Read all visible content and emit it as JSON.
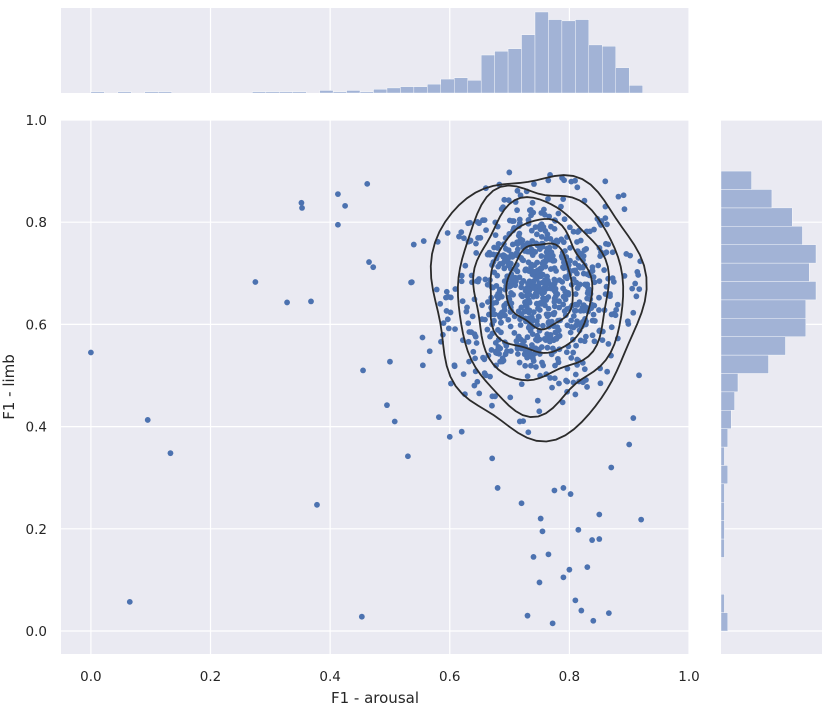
{
  "chart_data": {
    "type": "scatter",
    "title": "",
    "xlabel": "F1 - arousal",
    "ylabel": "F1 - limb",
    "xlim": [
      -0.05,
      1.0
    ],
    "ylim": [
      -0.045,
      1.0
    ],
    "xticks": [
      "0.0",
      "0.2",
      "0.4",
      "0.6",
      "0.8",
      "1.0"
    ],
    "yticks": [
      "0.0",
      "0.2",
      "0.4",
      "0.6",
      "0.8",
      "1.0"
    ],
    "grid": true,
    "point_color": "#4c72b0",
    "hist_color": "#a2b3d6",
    "contour_color": "#2b2b2b",
    "background_color": "#eaeaf2",
    "outliers": [
      [
        0.0,
        0.545
      ],
      [
        0.065,
        0.057
      ],
      [
        0.095,
        0.413
      ],
      [
        0.133,
        0.348
      ],
      [
        0.275,
        0.683
      ],
      [
        0.328,
        0.643
      ],
      [
        0.352,
        0.838
      ],
      [
        0.353,
        0.828
      ],
      [
        0.368,
        0.645
      ],
      [
        0.378,
        0.247
      ],
      [
        0.413,
        0.855
      ],
      [
        0.413,
        0.795
      ],
      [
        0.425,
        0.832
      ],
      [
        0.453,
        0.028
      ],
      [
        0.455,
        0.51
      ],
      [
        0.462,
        0.875
      ],
      [
        0.465,
        0.722
      ],
      [
        0.472,
        0.712
      ],
      [
        0.495,
        0.442
      ],
      [
        0.5,
        0.527
      ],
      [
        0.508,
        0.41
      ],
      [
        0.53,
        0.342
      ],
      [
        0.555,
        0.52
      ],
      [
        0.92,
        0.218
      ],
      [
        0.866,
        0.035
      ],
      [
        0.84,
        0.02
      ],
      [
        0.772,
        0.015
      ],
      [
        0.73,
        0.03
      ],
      [
        0.79,
        0.105
      ],
      [
        0.8,
        0.12
      ],
      [
        0.81,
        0.06
      ],
      [
        0.82,
        0.04
      ],
      [
        0.755,
        0.195
      ],
      [
        0.775,
        0.275
      ],
      [
        0.79,
        0.28
      ],
      [
        0.802,
        0.268
      ],
      [
        0.815,
        0.198
      ],
      [
        0.838,
        0.178
      ],
      [
        0.85,
        0.228
      ],
      [
        0.85,
        0.18
      ],
      [
        0.68,
        0.28
      ],
      [
        0.72,
        0.25
      ],
      [
        0.74,
        0.145
      ],
      [
        0.765,
        0.15
      ],
      [
        0.75,
        0.095
      ],
      [
        0.752,
        0.22
      ],
      [
        0.83,
        0.125
      ],
      [
        0.6,
        0.38
      ],
      [
        0.62,
        0.39
      ],
      [
        0.87,
        0.32
      ],
      [
        0.9,
        0.365
      ],
      [
        0.905,
        0.67
      ],
      [
        0.912,
        0.655
      ],
      [
        0.91,
        0.68
      ],
      [
        0.882,
        0.85
      ],
      [
        0.86,
        0.88
      ]
    ],
    "cluster": {
      "n": 780,
      "mean_x": 0.745,
      "mean_y": 0.66,
      "sd_x": 0.072,
      "sd_y": 0.095,
      "xmin": 0.5,
      "xmax": 0.92,
      "ymin": 0.3,
      "ymax": 0.93
    },
    "contours": [
      {
        "cx": 0.745,
        "cy": 0.645,
        "rx": 0.175,
        "ry": 0.255
      },
      {
        "cx": 0.748,
        "cy": 0.655,
        "rx": 0.138,
        "ry": 0.218
      },
      {
        "cx": 0.75,
        "cy": 0.665,
        "rx": 0.112,
        "ry": 0.175
      },
      {
        "cx": 0.75,
        "cy": 0.67,
        "rx": 0.085,
        "ry": 0.13
      },
      {
        "cx": 0.752,
        "cy": 0.675,
        "rx": 0.055,
        "ry": 0.083
      }
    ],
    "x_hist": {
      "bin_edges": [
        0.0,
        0.0225,
        0.045,
        0.0675,
        0.09,
        0.1125,
        0.135,
        0.1575,
        0.18,
        0.2025,
        0.225,
        0.2475,
        0.27,
        0.2925,
        0.315,
        0.3375,
        0.36,
        0.3825,
        0.405,
        0.4275,
        0.45,
        0.4725,
        0.495,
        0.5175,
        0.54,
        0.5625,
        0.585,
        0.6075,
        0.63,
        0.6525,
        0.675,
        0.6975,
        0.72,
        0.7425,
        0.765,
        0.7875,
        0.81,
        0.8325,
        0.855,
        0.8775,
        0.9,
        0.9225
      ],
      "counts": [
        1,
        0,
        1,
        0,
        1,
        1,
        0,
        0,
        0,
        0,
        0,
        0,
        1,
        1,
        1,
        1,
        0,
        2,
        1,
        2,
        1,
        3,
        4,
        5,
        5,
        7,
        11,
        12,
        10,
        30,
        33,
        35,
        46,
        64,
        58,
        57,
        58,
        38,
        37,
        20,
        6
      ]
    },
    "y_hist": {
      "bin_edges": [
        0.0,
        0.036,
        0.072,
        0.108,
        0.144,
        0.18,
        0.216,
        0.252,
        0.288,
        0.324,
        0.36,
        0.396,
        0.432,
        0.468,
        0.504,
        0.54,
        0.576,
        0.612,
        0.648,
        0.684,
        0.72,
        0.756,
        0.792,
        0.828,
        0.864,
        0.9
      ],
      "counts": [
        2,
        1,
        0,
        0,
        1,
        1,
        1,
        1,
        2,
        1,
        2,
        3,
        4,
        5,
        14,
        19,
        25,
        25,
        28,
        26,
        28,
        24,
        21,
        15,
        9,
        1
      ]
    }
  }
}
